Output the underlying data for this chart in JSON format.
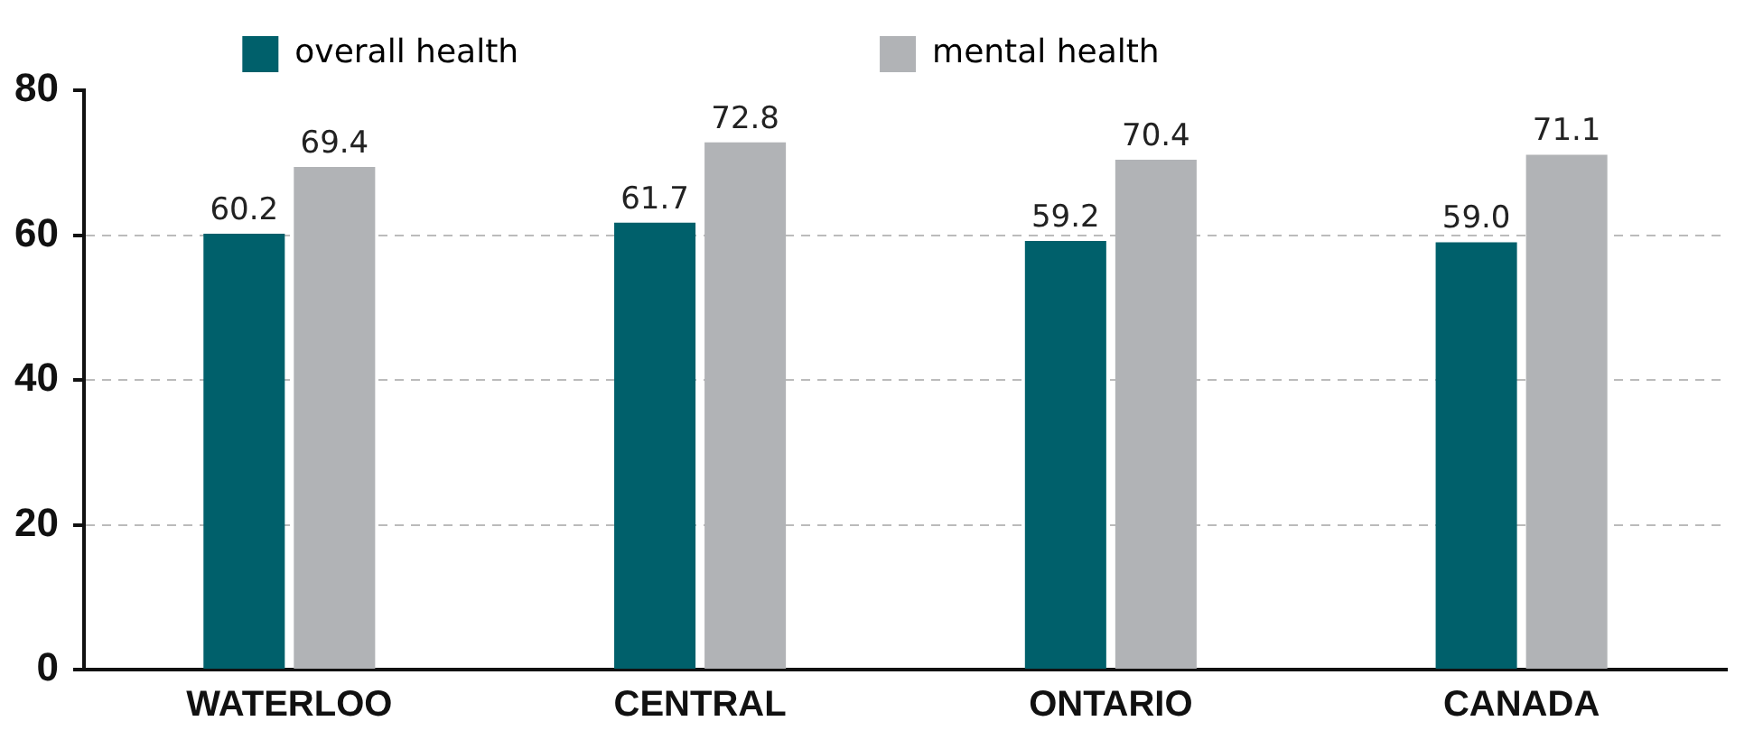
{
  "chart_data": {
    "type": "bar",
    "categories": [
      "WATERLOO",
      "CENTRAL",
      "ONTARIO",
      "CANADA"
    ],
    "series": [
      {
        "name": "overall health",
        "color": "#00606b",
        "values": [
          60.2,
          61.7,
          59.2,
          59.0
        ],
        "value_labels": [
          "60.2",
          "61.7",
          "59.2",
          "59.0"
        ]
      },
      {
        "name": "mental health",
        "color": "#b1b3b6",
        "values": [
          69.4,
          72.8,
          70.4,
          71.1
        ],
        "value_labels": [
          "69.4",
          "72.8",
          "70.4",
          "71.1"
        ]
      }
    ],
    "ylim": [
      0,
      80
    ],
    "yticks": [
      0,
      20,
      40,
      60,
      80
    ],
    "grid": "y",
    "legend": "top"
  }
}
